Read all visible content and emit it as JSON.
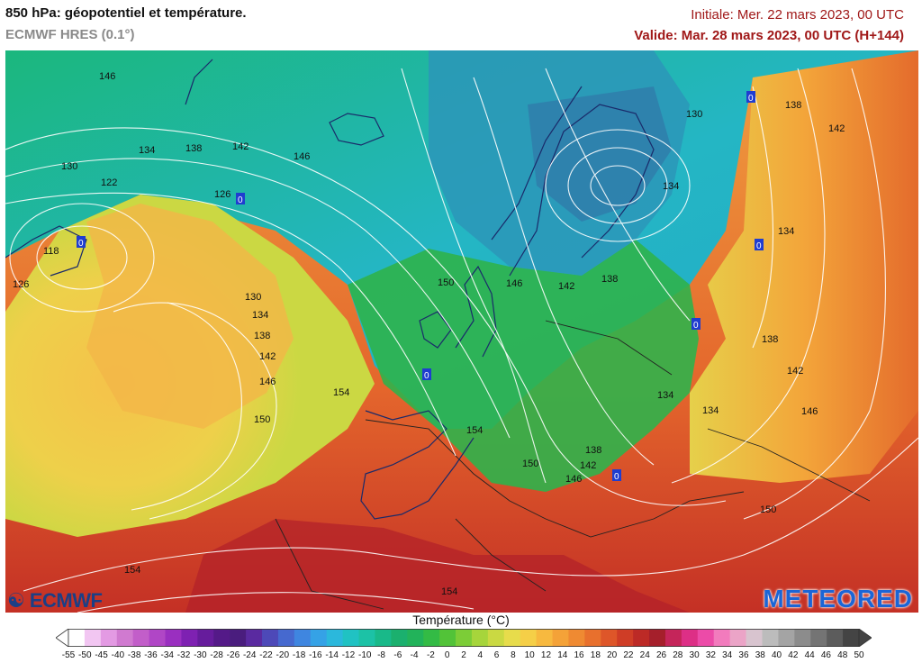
{
  "header": {
    "title": "850 hPa: géopotentiel et température.",
    "model": "ECMWF HRES (0.1°)",
    "initial": "Initiale: Mer. 22 mars 2023, 00 UTC",
    "valid": "Valide: Mar. 28 mars 2023, 00 UTC (H+144)"
  },
  "logos": {
    "left": "ECMWF",
    "right": "METEORED"
  },
  "colorbar": {
    "title": "Température (°C)",
    "ticks": [
      "-55",
      "-50",
      "-45",
      "-40",
      "-38",
      "-36",
      "-34",
      "-32",
      "-30",
      "-28",
      "-26",
      "-24",
      "-22",
      "-20",
      "-18",
      "-16",
      "-14",
      "-12",
      "-10",
      "-8",
      "-6",
      "-4",
      "-2",
      "0",
      "2",
      "4",
      "6",
      "8",
      "10",
      "12",
      "14",
      "16",
      "18",
      "20",
      "22",
      "24",
      "26",
      "28",
      "30",
      "32",
      "34",
      "36",
      "38",
      "40",
      "42",
      "44",
      "46",
      "48",
      "50"
    ],
    "colors": [
      "#ffffff",
      "#f2c6f2",
      "#e39ae3",
      "#d07ad0",
      "#c25ec9",
      "#b046c6",
      "#9a2fc0",
      "#7e21b2",
      "#661c9c",
      "#541a88",
      "#4a1d7e",
      "#5a2aa0",
      "#4d49b8",
      "#4669cf",
      "#3f86e0",
      "#35a2e6",
      "#2bb8dc",
      "#20c2c3",
      "#1cc2a6",
      "#19b989",
      "#1bb06e",
      "#22b35a",
      "#33bb45",
      "#52c338",
      "#7ccd37",
      "#a6d53b",
      "#cad942",
      "#e7dc4b",
      "#f5cf47",
      "#f7b93f",
      "#f4a238",
      "#ef8a32",
      "#e8702d",
      "#de5629",
      "#cf3d26",
      "#bc2a26",
      "#a51f2b",
      "#c5255a",
      "#dd2f86",
      "#ec4ba8",
      "#f27bbd",
      "#eba4c7",
      "#d8c4cf",
      "#bcbcbc",
      "#a4a4a4",
      "#8c8c8c",
      "#747474",
      "#5c5c5c",
      "#444444"
    ]
  },
  "map": {
    "highs": [
      {
        "label": "0"
      },
      {
        "label": "0"
      },
      {
        "label": "0"
      },
      {
        "label": "0"
      },
      {
        "label": "0"
      },
      {
        "label": "0"
      },
      {
        "label": "0"
      },
      {
        "label": "0"
      }
    ],
    "contour_labels": [
      "146",
      "134",
      "138",
      "142",
      "146",
      "130",
      "122",
      "126",
      "118",
      "126",
      "130",
      "134",
      "138",
      "142",
      "146",
      "150",
      "154",
      "150",
      "146",
      "142",
      "138",
      "134",
      "130",
      "138",
      "142",
      "134",
      "134",
      "138",
      "142",
      "134",
      "146",
      "154",
      "150",
      "138",
      "142",
      "146",
      "150",
      "154",
      "154",
      "150"
    ]
  }
}
